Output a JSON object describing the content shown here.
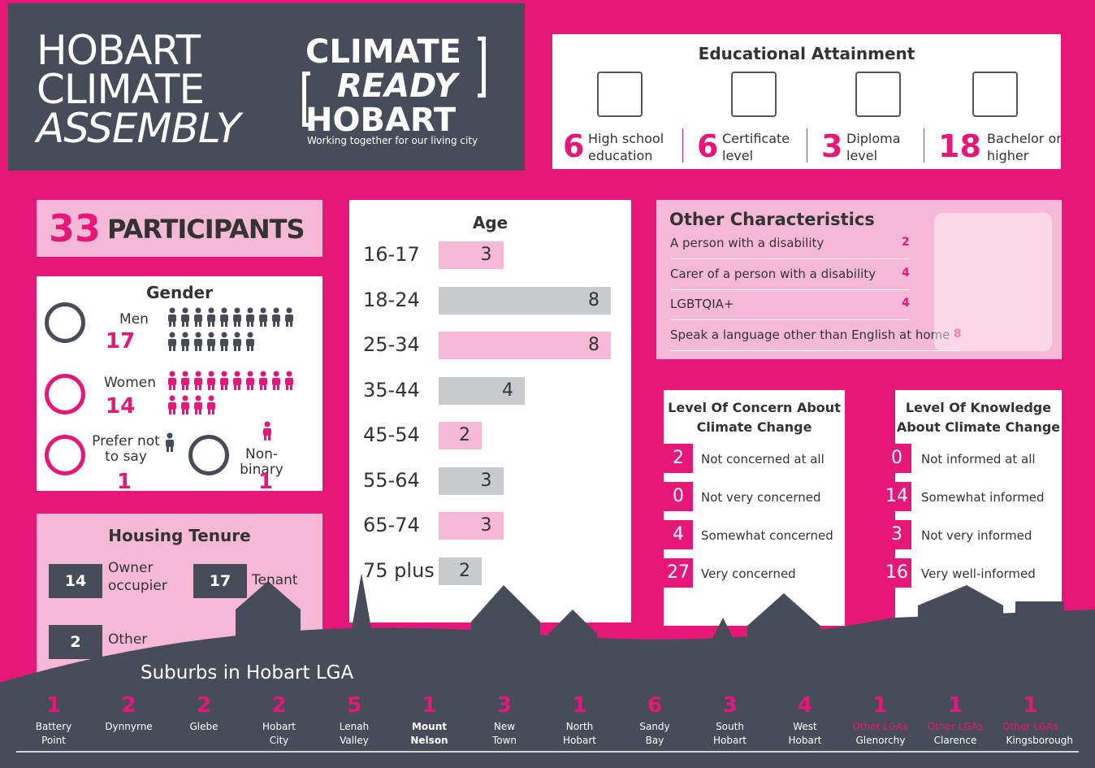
{
  "header": {
    "title": [
      "HOBART",
      "CLIMATE",
      "ASSEMBLY"
    ],
    "logo": [
      "CLIMATE",
      "READY",
      "HOBART"
    ],
    "tagline": "Working together for our living city"
  },
  "education": {
    "title": "Educational Attainment",
    "items": [
      {
        "value": 6,
        "label": "High school education"
      },
      {
        "value": 6,
        "label": "Certificate level"
      },
      {
        "value": 3,
        "label": "Diploma level"
      },
      {
        "value": 18,
        "label": "Bachelor or higher"
      }
    ]
  },
  "participants": {
    "value": 33,
    "label": "PARTICIPANTS"
  },
  "gender": {
    "title": "Gender",
    "items": [
      {
        "label": "Men",
        "value": 17
      },
      {
        "label": "Women",
        "value": 14
      },
      {
        "label": "Prefer not to say",
        "value": 1
      },
      {
        "label": "Non-binary",
        "value": 1
      }
    ]
  },
  "housing": {
    "title": "Housing Tenure",
    "items": [
      {
        "value": 14,
        "label": "Owner occupier"
      },
      {
        "value": 17,
        "label": "Tenant"
      },
      {
        "value": 2,
        "label": "Other"
      }
    ]
  },
  "age": {
    "title": "Age",
    "rows": [
      {
        "label": "16-17",
        "value": 3
      },
      {
        "label": "18-24",
        "value": 8
      },
      {
        "label": "25-34",
        "value": 8
      },
      {
        "label": "35-44",
        "value": 4
      },
      {
        "label": "45-54",
        "value": 2
      },
      {
        "label": "55-64",
        "value": 3
      },
      {
        "label": "65-74",
        "value": 3
      },
      {
        "label": "75 plus",
        "value": 2
      }
    ]
  },
  "other": {
    "title": "Other Characteristics",
    "items": [
      {
        "label": "A person with a disability",
        "value": 2
      },
      {
        "label": "Carer of a person with a disability",
        "value": 4
      },
      {
        "label": "LGBTQIA+",
        "value": 4
      },
      {
        "label": "Speak a language other than English at home",
        "value": 8
      }
    ]
  },
  "concern": {
    "title": "Level Of Concern About Climate Change",
    "items": [
      {
        "value": 2,
        "label": "Not concerned at all"
      },
      {
        "value": 0,
        "label": "Not very concerned"
      },
      {
        "value": 4,
        "label": "Somewhat concerned"
      },
      {
        "value": 27,
        "label": "Very concerned"
      }
    ]
  },
  "knowledge": {
    "title": "Level Of Knowledge About Climate Change",
    "items": [
      {
        "value": 0,
        "label": "Not informed at all"
      },
      {
        "value": 14,
        "label": "Somewhat informed"
      },
      {
        "value": 3,
        "label": "Not very informed"
      },
      {
        "value": 16,
        "label": "Very well-informed"
      }
    ]
  },
  "suburbs": {
    "title": "Suburbs in Hobart LGA",
    "items": [
      {
        "value": 1,
        "name": "Battery Point"
      },
      {
        "value": 2,
        "name": "Dynnyrne"
      },
      {
        "value": 2,
        "name": "Glebe"
      },
      {
        "value": 2,
        "name": "Hobart City"
      },
      {
        "value": 5,
        "name": "Lenah Valley"
      },
      {
        "value": 1,
        "name": "Mount Nelson"
      },
      {
        "value": 3,
        "name": "New Town"
      },
      {
        "value": 1,
        "name": "North Hobart"
      },
      {
        "value": 6,
        "name": "Sandy Bay"
      },
      {
        "value": 3,
        "name": "South Hobart"
      },
      {
        "value": 4,
        "name": "West Hobart"
      },
      {
        "value": 1,
        "note": "Other LGAs",
        "name": "Glenorchy"
      },
      {
        "value": 1,
        "note": "Other LGAs",
        "name": "Clarence"
      },
      {
        "value": 1,
        "note": "Other LGAs",
        "name": "Kingsborough"
      }
    ]
  }
}
